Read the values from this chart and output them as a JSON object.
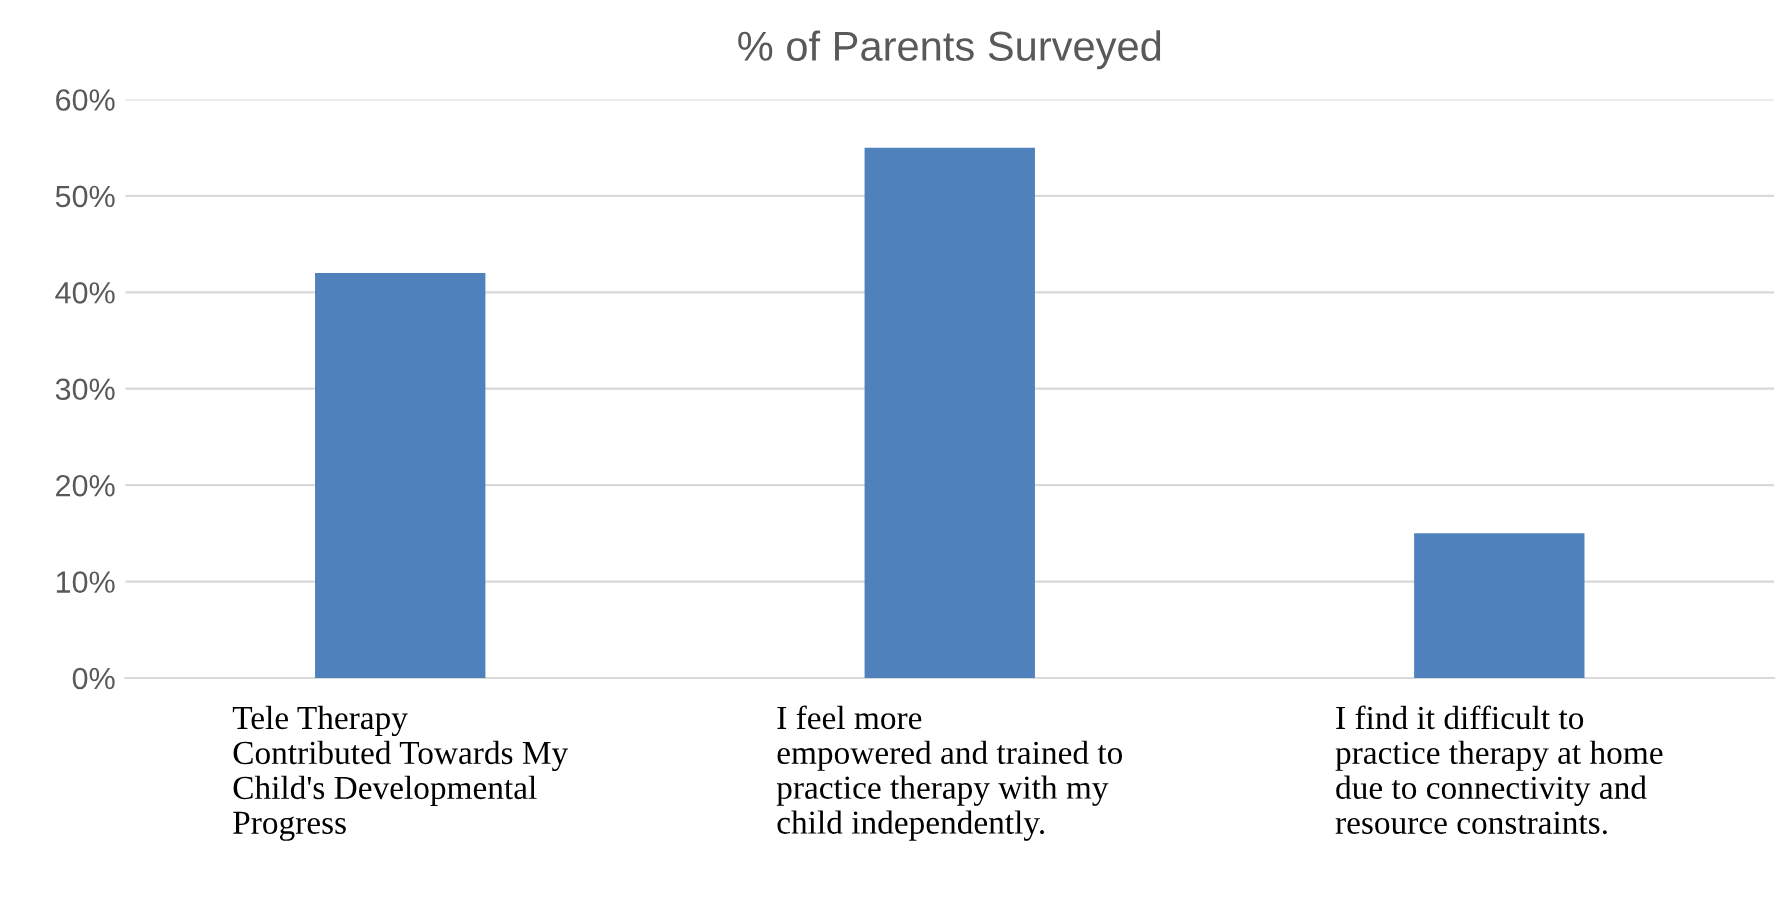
{
  "chart_data": {
    "type": "bar",
    "title": "% of Parents Surveyed",
    "categories": [
      "Tele Therapy\nContributed Towards My\nChild's Developmental\nProgress",
      "I feel more\nempowered and trained to\npractice therapy with my\nchild independently.",
      "I find it difficult to\npractice therapy at home\ndue to connectivity and\nresource constraints."
    ],
    "values": [
      42,
      55,
      15
    ],
    "color": "#4f81bd",
    "ylim": [
      0,
      60
    ],
    "yticks": [
      {
        "value": 0,
        "label": "0%"
      },
      {
        "value": 10,
        "label": "10%"
      },
      {
        "value": 20,
        "label": "20%"
      },
      {
        "value": 30,
        "label": "30%"
      },
      {
        "value": 40,
        "label": "40%"
      },
      {
        "value": 50,
        "label": "50%"
      },
      {
        "value": 60,
        "label": "60%"
      }
    ],
    "grid": "y"
  }
}
